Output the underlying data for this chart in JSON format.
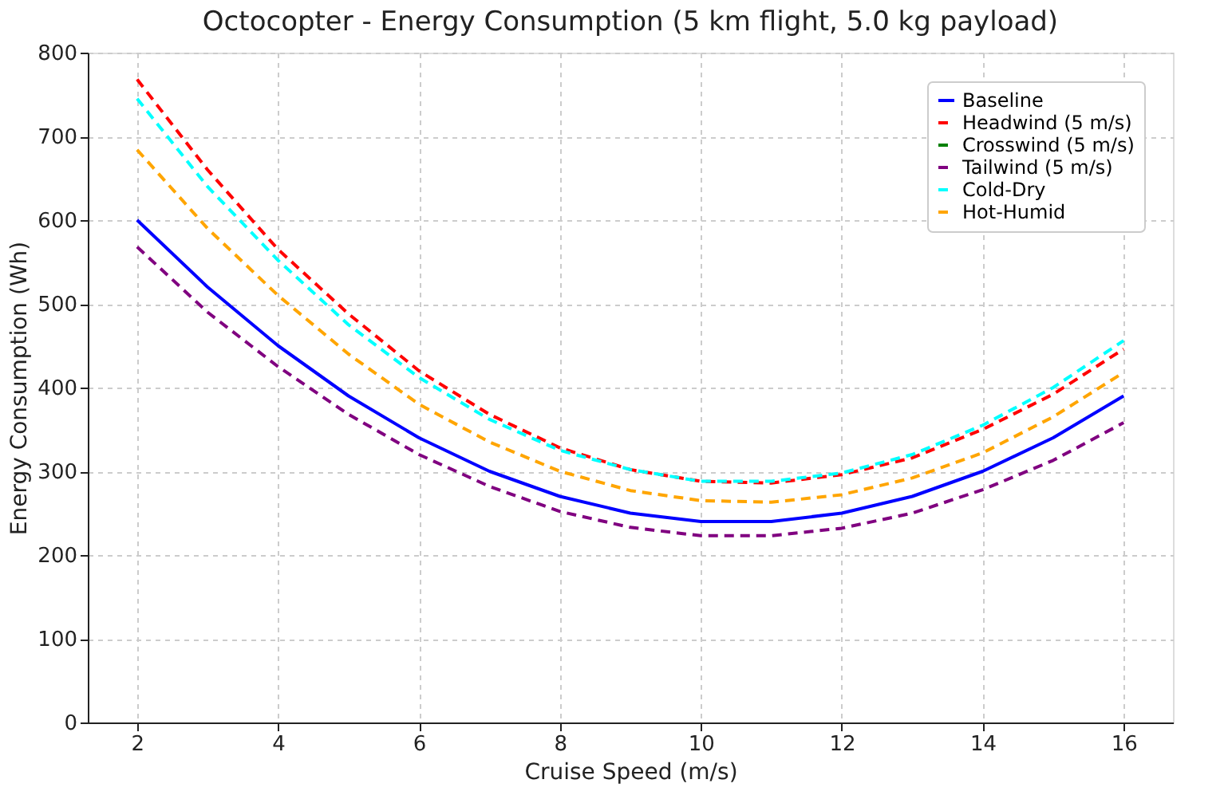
{
  "chart_data": {
    "type": "line",
    "title": "Octocopter - Energy Consumption (5 km flight, 5.0 kg payload)",
    "xlabel": "Cruise Speed (m/s)",
    "ylabel": "Energy Consumption (Wh)",
    "x": [
      2,
      3,
      4,
      5,
      6,
      7,
      8,
      9,
      10,
      11,
      12,
      13,
      14,
      15,
      16
    ],
    "series": [
      {
        "name": "Baseline",
        "color": "#0000ff",
        "line_style": "solid",
        "values": [
          600,
          520,
          450,
          390,
          340,
          300,
          270,
          250,
          240,
          240,
          250,
          270,
          300,
          340,
          390
        ]
      },
      {
        "name": "Headwind (5 m/s)",
        "color": "#ff0000",
        "line_style": "dashed",
        "values": [
          768,
          660,
          565,
          488,
          420,
          368,
          328,
          302,
          288,
          286,
          296,
          316,
          350,
          392,
          446
        ]
      },
      {
        "name": "Crosswind (5 m/s)",
        "color": "#008000",
        "line_style": "dashed",
        "values": [
          null,
          null,
          null,
          null,
          null,
          null,
          null,
          null,
          null,
          null,
          null,
          null,
          null,
          null,
          null
        ]
      },
      {
        "name": "Tailwind (5 m/s)",
        "color": "#800080",
        "line_style": "dashed",
        "values": [
          568,
          490,
          425,
          368,
          320,
          282,
          252,
          233,
          223,
          223,
          232,
          250,
          278,
          313,
          358
        ]
      },
      {
        "name": "Cold-Dry",
        "color": "#00ffff",
        "line_style": "dashed",
        "values": [
          745,
          640,
          552,
          475,
          412,
          362,
          325,
          302,
          288,
          288,
          298,
          320,
          355,
          400,
          456
        ]
      },
      {
        "name": "Hot-Humid",
        "color": "#ffa500",
        "line_style": "dashed",
        "values": [
          684,
          590,
          510,
          440,
          380,
          335,
          300,
          277,
          265,
          263,
          272,
          292,
          322,
          365,
          418
        ]
      }
    ],
    "xlim": [
      1.3,
      16.7
    ],
    "xticks": [
      2,
      4,
      6,
      8,
      10,
      12,
      14,
      16
    ],
    "ylim": [
      0,
      800
    ],
    "yticks": [
      0,
      100,
      200,
      300,
      400,
      500,
      600,
      700,
      800
    ],
    "grid": true,
    "legend": "top right",
    "marker": "none"
  }
}
